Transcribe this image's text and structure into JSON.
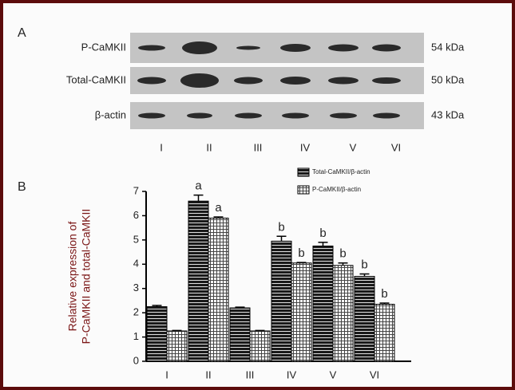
{
  "panels": {
    "a": "A",
    "b": "B"
  },
  "panel_a": {
    "rows": [
      {
        "label": "P-CaMKII",
        "size": "54 kDa"
      },
      {
        "label": "Total-CaMKII",
        "size": "50 kDa"
      },
      {
        "label": "β-actin",
        "size": "43 kDa"
      }
    ],
    "lanes": [
      "I",
      "II",
      "III",
      "IV",
      "V",
      "VI"
    ]
  },
  "chart_data": {
    "type": "bar",
    "y_label": [
      "Relative expression of",
      "P-CaMKII and total-CaMKII"
    ],
    "categories": [
      "I",
      "II",
      "III",
      "IV",
      "V",
      "VI"
    ],
    "series": [
      {
        "name": "Total-CaMKII/β-actin",
        "color": "#1a1a1a",
        "values": [
          2.25,
          6.6,
          2.2,
          4.95,
          4.75,
          3.5
        ],
        "errors": [
          0.05,
          0.25,
          0.03,
          0.2,
          0.15,
          0.1
        ],
        "annotations": [
          null,
          "a",
          null,
          "b",
          "b",
          "b"
        ]
      },
      {
        "name": "P-CaMKII/β-actin",
        "color": "#ffffff",
        "values": [
          1.25,
          5.9,
          1.25,
          4.05,
          3.95,
          2.35
        ],
        "errors": [
          0.02,
          0.05,
          0.02,
          0.02,
          0.1,
          0.05
        ],
        "annotations": [
          null,
          "a",
          null,
          "b",
          "b",
          "b"
        ]
      }
    ],
    "ylim": [
      0,
      7
    ],
    "yticks": [
      0,
      1,
      2,
      3,
      4,
      5,
      6,
      7
    ]
  }
}
